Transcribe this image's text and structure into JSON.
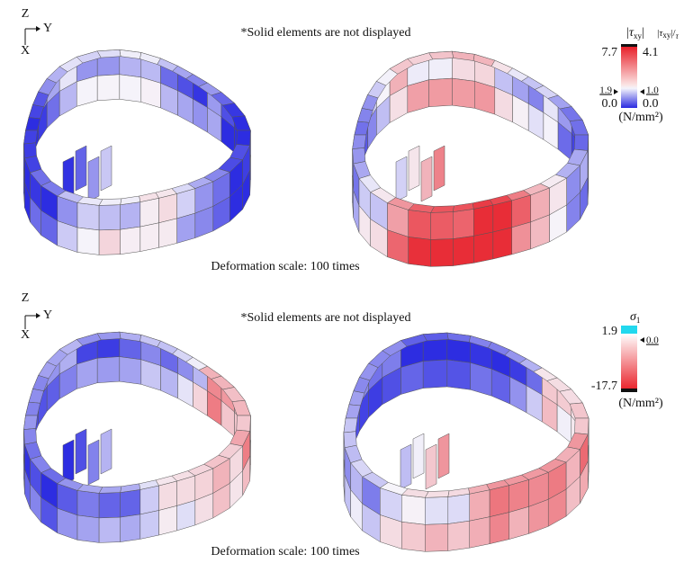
{
  "panels": [
    {
      "axes": {
        "z": "Z",
        "y": "Y",
        "x": "X"
      },
      "note": "*Solid elements are not displayed",
      "caption": "Deformation scale: 100 times",
      "legend": {
        "left_title": {
          "open": "|",
          "symbol": "τ",
          "sub": "xy",
          "close": "|"
        },
        "right_title": {
          "open": "|",
          "symbol": "τ",
          "sub": "xy",
          "close": "|/",
          "denom": "τ"
        },
        "left_max": "7.7",
        "right_max": "4.1",
        "left_mid": "1.9",
        "right_mid": "1.0",
        "left_min": "0.0",
        "right_min": "0.0",
        "unit": "(N/mm²)"
      }
    },
    {
      "axes": {
        "z": "Z",
        "y": "Y",
        "x": "X"
      },
      "note": "*Solid elements are not displayed",
      "caption": "Deformation scale: 100 times",
      "legend": {
        "title": {
          "symbol": "σ",
          "sub": "1"
        },
        "max": "1.9",
        "zero": "0.0",
        "min": "-17.7",
        "unit": "(N/mm²)"
      }
    }
  ]
}
